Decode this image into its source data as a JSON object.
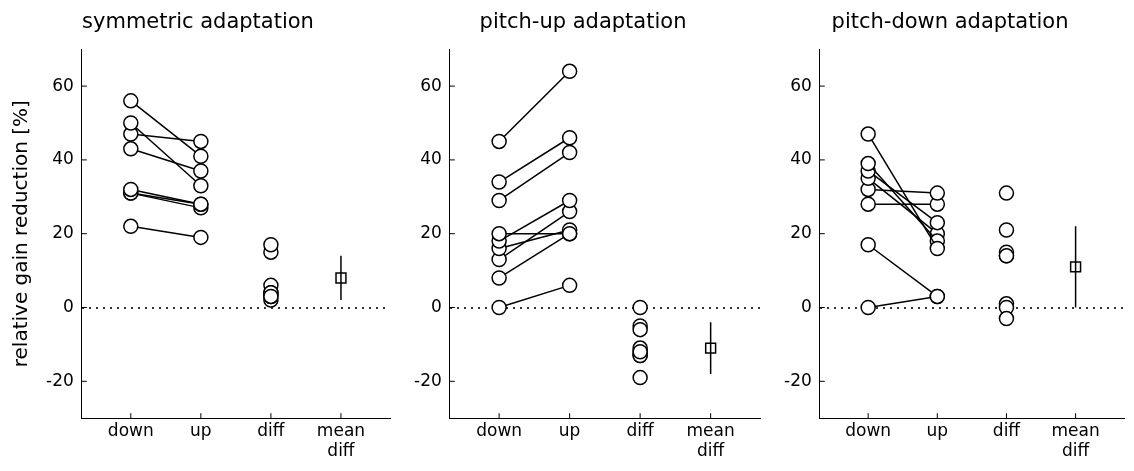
{
  "chart_data": [
    {
      "type": "scatter",
      "title": "symmetric adaptation",
      "y_label": "relative gain reduction [%]",
      "categories": [
        "down",
        "up",
        "diff",
        "mean diff"
      ],
      "down": [
        56,
        50,
        47,
        43,
        32,
        31,
        31,
        22
      ],
      "up": [
        41,
        33,
        45,
        37,
        28,
        28,
        27,
        19
      ],
      "diff": [
        15,
        17,
        2,
        6,
        4,
        3,
        4,
        3
      ],
      "mean_diff": 8,
      "mean_diff_error": 6,
      "color": "#000000",
      "marker": "circle",
      "ylim": [
        -30,
        70
      ],
      "yticks": [
        -20,
        0,
        20,
        40,
        60
      ],
      "grid": false
    },
    {
      "type": "scatter",
      "title": "pitch-up adaptation",
      "categories": [
        "down",
        "up",
        "diff",
        "mean diff"
      ],
      "down": [
        45,
        34,
        29,
        20,
        18,
        16,
        13,
        8,
        0
      ],
      "up": [
        64,
        46,
        42,
        20,
        29,
        21,
        26,
        20,
        6
      ],
      "diff": [
        -19,
        -12,
        -13,
        0,
        -11,
        -5,
        -13,
        -12,
        -6
      ],
      "mean_diff": -11,
      "mean_diff_error": 7,
      "color": "#000000",
      "marker": "circle",
      "ylim": [
        -30,
        70
      ],
      "yticks": [
        -20,
        0,
        20,
        40,
        60
      ],
      "grid": false
    },
    {
      "type": "scatter",
      "title": "pitch-down adaptation",
      "categories": [
        "down",
        "up",
        "diff",
        "mean diff"
      ],
      "down": [
        47,
        39,
        37,
        35,
        32,
        28,
        17,
        0
      ],
      "up": [
        16,
        18,
        23,
        20,
        31,
        28,
        3,
        3
      ],
      "diff": [
        31,
        21,
        14,
        15,
        1,
        0,
        14,
        -3
      ],
      "mean_diff": 11,
      "mean_diff_error": 11,
      "color": "#000000",
      "marker": "circle",
      "ylim": [
        -30,
        70
      ],
      "yticks": [
        -20,
        0,
        20,
        40,
        60
      ],
      "grid": false
    }
  ]
}
